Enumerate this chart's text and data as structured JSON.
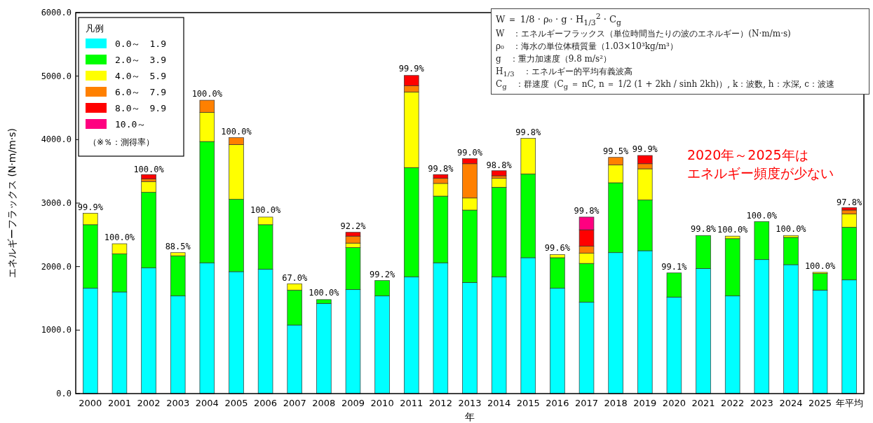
{
  "chart_data": {
    "type": "bar",
    "stacked": true,
    "xlabel": "年",
    "ylabel": "エネルギーフラックス (N·m/m·s)",
    "legend_title": "凡例",
    "legend": "top left",
    "grid": false,
    "categories": [
      "2000",
      "2001",
      "2002",
      "2003",
      "2004",
      "2005",
      "2006",
      "2007",
      "2008",
      "2009",
      "2010",
      "2011",
      "2012",
      "2013",
      "2014",
      "2015",
      "2016",
      "2017",
      "2018",
      "2019",
      "2020",
      "2021",
      "2022",
      "2023",
      "2024",
      "2025",
      "年平均"
    ],
    "ylim": [
      0,
      6000
    ],
    "yticks": [
      {
        "value": 0,
        "label": "0.0"
      },
      {
        "value": 1000,
        "label": "1000.0"
      },
      {
        "value": 2000,
        "label": "2000.0"
      },
      {
        "value": 3000,
        "label": "3000.0"
      },
      {
        "value": 4000,
        "label": "4000.0"
      },
      {
        "value": 5000,
        "label": "5000.0"
      },
      {
        "value": 6000,
        "label": "6000.0"
      }
    ],
    "series": [
      {
        "name": "0.0～　1.9",
        "color": "#00ffff",
        "values": [
          1660,
          1600,
          1980,
          1540,
          2060,
          1920,
          1960,
          1080,
          1420,
          1640,
          1540,
          1840,
          2060,
          1750,
          1840,
          2140,
          1660,
          1440,
          2220,
          2250,
          1520,
          1970,
          1540,
          2110,
          2030,
          1630,
          1790
        ]
      },
      {
        "name": "2.0～　3.9",
        "color": "#00ff00",
        "values": [
          1000,
          600,
          1190,
          630,
          1910,
          1140,
          700,
          550,
          60,
          660,
          240,
          1720,
          1050,
          1140,
          1410,
          1320,
          480,
          610,
          1100,
          800,
          380,
          520,
          900,
          600,
          430,
          260,
          830
        ]
      },
      {
        "name": "4.0～　5.9",
        "color": "#ffff00",
        "values": [
          180,
          160,
          170,
          50,
          460,
          860,
          120,
          100,
          null,
          70,
          null,
          1190,
          200,
          190,
          140,
          560,
          50,
          160,
          280,
          490,
          null,
          null,
          40,
          null,
          30,
          20,
          210
        ]
      },
      {
        "name": "6.0～　7.9",
        "color": "#ff8000",
        "values": [
          null,
          null,
          40,
          null,
          190,
          110,
          null,
          null,
          null,
          110,
          null,
          100,
          80,
          540,
          40,
          null,
          null,
          110,
          120,
          80,
          null,
          null,
          null,
          null,
          null,
          null,
          60
        ]
      },
      {
        "name": "8.0～　9.9",
        "color": "#ff0000",
        "values": [
          null,
          null,
          70,
          null,
          null,
          null,
          null,
          null,
          null,
          60,
          null,
          160,
          60,
          80,
          80,
          null,
          null,
          260,
          null,
          130,
          null,
          null,
          null,
          null,
          null,
          null,
          40
        ]
      },
      {
        "name": "10.0～",
        "color": "#ff0080",
        "values": [
          null,
          null,
          null,
          null,
          null,
          null,
          null,
          null,
          null,
          null,
          null,
          null,
          null,
          null,
          null,
          null,
          null,
          200,
          null,
          null,
          null,
          null,
          null,
          null,
          null,
          null,
          null
        ]
      }
    ],
    "annotations": [
      "（※％：測得率）",
      "2020年～2025年は",
      "エネルギー頻度が少ない",
      "W ＝ 1/8 · ρ₀ · g · H$_{1/3}$$^{2}$ · C$_{g}$",
      "W　：エネルギーフラックス（単位時間当たりの波のエネルギー）(N·m/m·s)",
      "ρ₀　：海水の単位体積質量（1.03×10³kg/m³）",
      "g　：重力加速度（9.8 m/s²）",
      "H$_{1/3}$　：エネルギー的平均有義波高",
      "C$_{g}$　：群速度（C$_{g}$ ＝ nC, n ＝ 1/2 (1 + 2kh / sinh 2kh)）, k：波数, h：水深, c：波速",
      {
        "text": "99.9%",
        "x": "2000",
        "y": 2840
      },
      {
        "text": "100.0%",
        "x": "2001",
        "y": 2360
      },
      {
        "text": "100.0%",
        "x": "2002",
        "y": 3435
      },
      {
        "text": "88.5%",
        "x": "2003",
        "y": 2220
      },
      {
        "text": "100.0%",
        "x": "2004",
        "y": 4620
      },
      {
        "text": "100.0%",
        "x": "2005",
        "y": 4030
      },
      {
        "text": "100.0%",
        "x": "2006",
        "y": 2785
      },
      {
        "text": "67.0%",
        "x": "2007",
        "y": 1725
      },
      {
        "text": "100.0%",
        "x": "2008",
        "y": 1485
      },
      {
        "text": "92.2%",
        "x": "2009",
        "y": 2535
      },
      {
        "text": "99.2%",
        "x": "2010",
        "y": 1780
      },
      {
        "text": "99.9%",
        "x": "2011",
        "y": 5015
      },
      {
        "text": "99.8%",
        "x": "2012",
        "y": 3440
      },
      {
        "text": "99.0%",
        "x": "2013",
        "y": 3700
      },
      {
        "text": "98.8%",
        "x": "2014",
        "y": 3495
      },
      {
        "text": "99.8%",
        "x": "2015",
        "y": 4010
      },
      {
        "text": "99.6%",
        "x": "2016",
        "y": 2190
      },
      {
        "text": "99.8%",
        "x": "2017",
        "y": 2780
      },
      {
        "text": "99.5%",
        "x": "2018",
        "y": 3715
      },
      {
        "text": "99.9%",
        "x": "2019",
        "y": 3745
      },
      {
        "text": "99.1%",
        "x": "2020",
        "y": 1900
      },
      {
        "text": "99.8%",
        "x": "2021",
        "y": 2490
      },
      {
        "text": "100.0%",
        "x": "2022",
        "y": 2480
      },
      {
        "text": "100.0%",
        "x": "2023",
        "y": 2705
      },
      {
        "text": "100.0%",
        "x": "2024",
        "y": 2490
      },
      {
        "text": "100.0%",
        "x": "2025",
        "y": 1910
      },
      {
        "text": "97.8%",
        "x": "年平均",
        "y": 2915
      }
    ]
  }
}
